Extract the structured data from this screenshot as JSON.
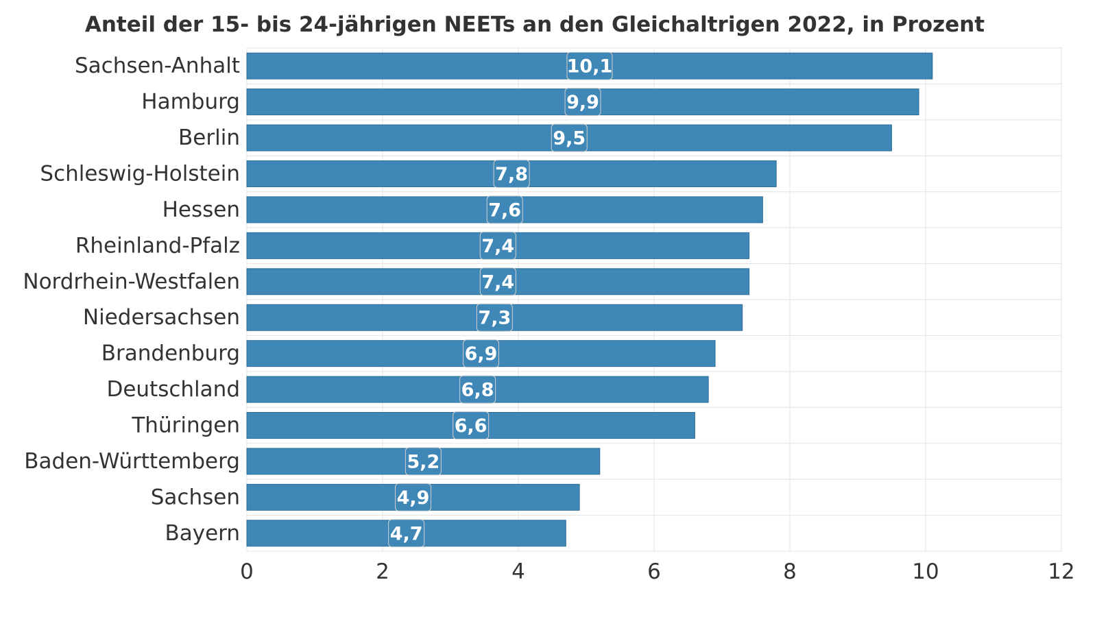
{
  "chart_data": {
    "type": "bar",
    "orientation": "horizontal",
    "title": "Anteil der 15- bis 24-jährigen NEETs an den Gleichaltrigen 2022, in Prozent",
    "xlabel": "",
    "ylabel": "",
    "categories": [
      "Sachsen-Anhalt",
      "Hamburg",
      "Berlin",
      "Schleswig-Holstein",
      "Hessen",
      "Rheinland-Pfalz",
      "Nordrhein-Westfalen",
      "Niedersachsen",
      "Brandenburg",
      "Deutschland",
      "Thüringen",
      "Baden-Württemberg",
      "Sachsen",
      "Bayern"
    ],
    "values": [
      10.1,
      9.9,
      9.5,
      7.8,
      7.6,
      7.4,
      7.4,
      7.3,
      6.9,
      6.8,
      6.6,
      5.2,
      4.9,
      4.7
    ],
    "data_labels": [
      "10,1",
      "9,9",
      "9,5",
      "7,8",
      "7,6",
      "7,4",
      "7,4",
      "7,3",
      "6,9",
      "6,8",
      "6,6",
      "5,2",
      "4,9",
      "4,7"
    ],
    "xlim": [
      0,
      12
    ],
    "x_ticks": [
      0,
      2,
      4,
      6,
      8,
      10,
      12
    ],
    "x_tick_labels": [
      "0",
      "2",
      "4",
      "6",
      "8",
      "10",
      "12"
    ],
    "grid": true,
    "legend": "none",
    "colors": {
      "bar": "#3f87b6",
      "label_box": "#3f87b6",
      "label_text": "#ffffff",
      "grid": "#e3e3e3",
      "text": "#333333"
    }
  }
}
